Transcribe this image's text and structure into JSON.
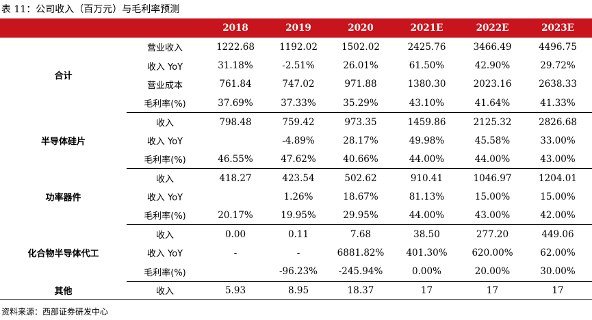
{
  "title": "表 11：公司收入（百万元）与毛利率预测",
  "header": {
    "blank1": "",
    "blank2": "",
    "years": [
      "2018",
      "2019",
      "2020",
      "2021E",
      "2022E",
      "2023E"
    ]
  },
  "groups": [
    {
      "name": "合计",
      "rows": [
        {
          "metric": "营业收入",
          "values": [
            "1222.68",
            "1192.02",
            "1502.02",
            "2425.76",
            "3466.49",
            "4496.75"
          ]
        },
        {
          "metric": "收入 YoY",
          "values": [
            "31.18%",
            "-2.51%",
            "26.01%",
            "61.50%",
            "42.90%",
            "29.72%"
          ]
        },
        {
          "metric": "营业成本",
          "values": [
            "761.84",
            "747.02",
            "971.88",
            "1380.30",
            "2023.16",
            "2638.33"
          ]
        },
        {
          "metric": "毛利率(%)",
          "values": [
            "37.69%",
            "37.33%",
            "35.29%",
            "43.10%",
            "41.64%",
            "41.33%"
          ]
        }
      ]
    },
    {
      "name": "半导体硅片",
      "rows": [
        {
          "metric": "收入",
          "values": [
            "798.48",
            "759.42",
            "973.35",
            "1459.86",
            "2125.32",
            "2826.68"
          ]
        },
        {
          "metric": "收入 YoY",
          "values": [
            "",
            "-4.89%",
            "28.17%",
            "49.98%",
            "45.58%",
            "33.00%"
          ]
        },
        {
          "metric": "毛利率(%)",
          "values": [
            "46.55%",
            "47.62%",
            "40.66%",
            "44.00%",
            "44.00%",
            "43.00%"
          ]
        }
      ]
    },
    {
      "name": "功率器件",
      "rows": [
        {
          "metric": "收入",
          "values": [
            "418.27",
            "423.54",
            "502.62",
            "910.41",
            "1046.97",
            "1204.01"
          ]
        },
        {
          "metric": "收入 YoY",
          "values": [
            "",
            "1.26%",
            "18.67%",
            "81.13%",
            "15.00%",
            "15.00%"
          ]
        },
        {
          "metric": "毛利率(%)",
          "values": [
            "20.17%",
            "19.95%",
            "29.95%",
            "44.00%",
            "43.00%",
            "42.00%"
          ]
        }
      ]
    },
    {
      "name": "化合物半导体代工",
      "rows": [
        {
          "metric": "收入",
          "values": [
            "0.00",
            "0.11",
            "7.68",
            "38.50",
            "277.20",
            "449.06"
          ]
        },
        {
          "metric": "收入 YoY",
          "values": [
            "-",
            "-",
            "6881.82%",
            "401.30%",
            "620.00%",
            "62.00%"
          ]
        },
        {
          "metric": "毛利率(%)",
          "values": [
            "",
            "-96.23%",
            "-245.94%",
            "0.00%",
            "20.00%",
            "30.00%"
          ]
        }
      ]
    },
    {
      "name": "其他",
      "rows": [
        {
          "metric": "收入",
          "values": [
            "5.93",
            "8.95",
            "18.37",
            "17",
            "17",
            "17"
          ]
        }
      ]
    }
  ],
  "source": "资料来源：西部证券研发中心"
}
